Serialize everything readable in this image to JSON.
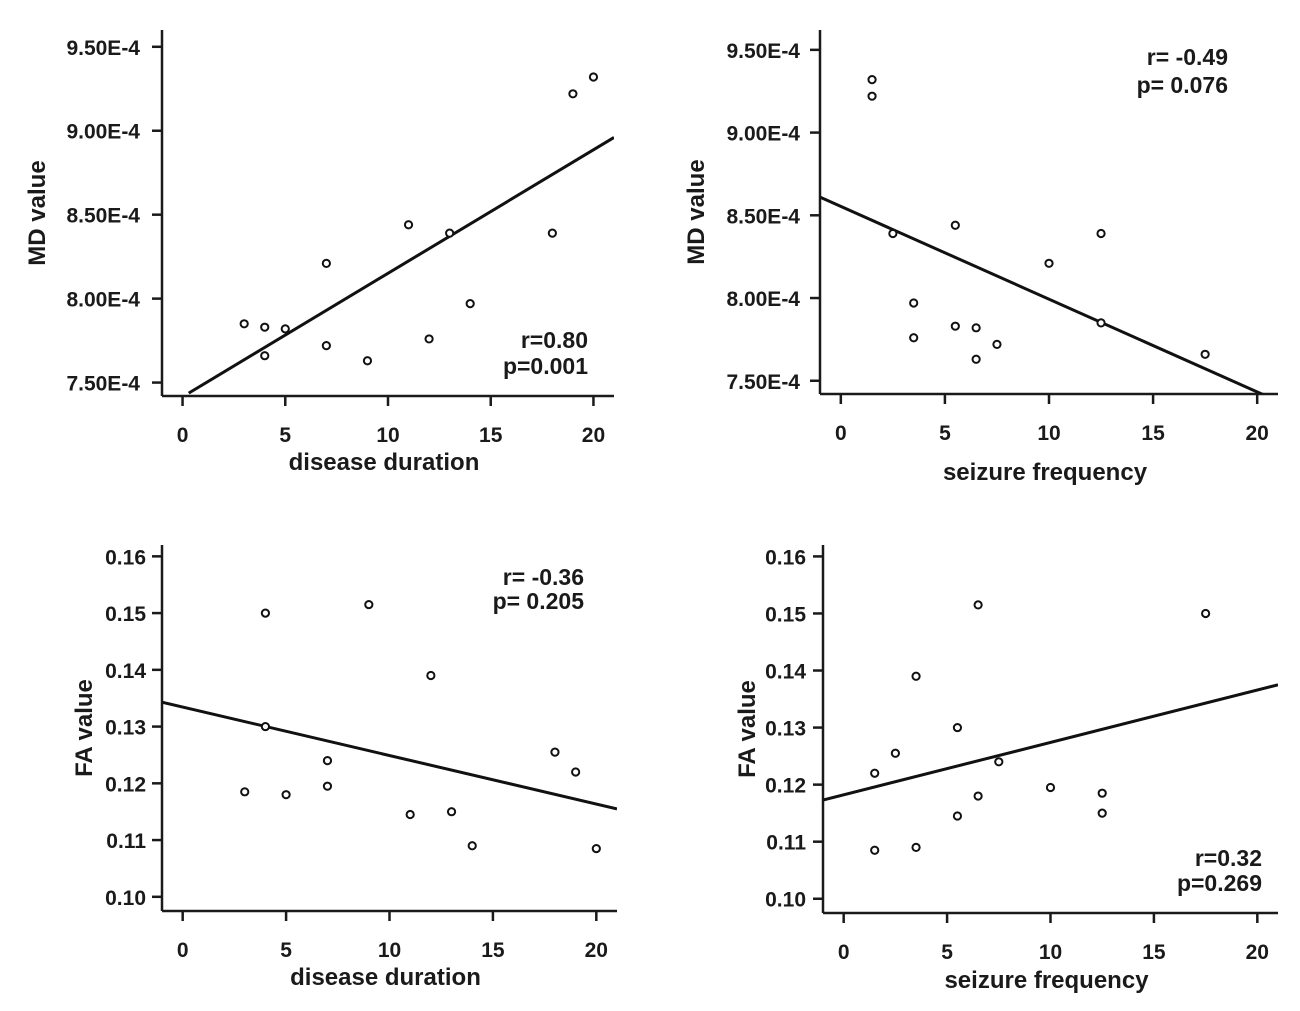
{
  "chart_data": [
    {
      "type": "scatter",
      "xlabel": "disease duration",
      "ylabel": "MD value",
      "xlim": [
        -1,
        21
      ],
      "ylim": [
        0.000742,
        0.00096
      ],
      "xticks": [
        0,
        5,
        10,
        15,
        20
      ],
      "xtick_labels": [
        "0",
        "5",
        "10",
        "15",
        "20"
      ],
      "yticks": [
        0.00075,
        0.0008,
        0.00085,
        0.0009,
        0.00095
      ],
      "ytick_labels": [
        "7.50E-4",
        "8.00E-4",
        "8.50E-4",
        "9.00E-4",
        "9.50E-4"
      ],
      "stats": [
        "r=0.80",
        "p=0.001"
      ],
      "stats_placement": "bottom-right",
      "points": [
        {
          "x": 3,
          "y": 0.000785
        },
        {
          "x": 4,
          "y": 0.000783
        },
        {
          "x": 4,
          "y": 0.000766
        },
        {
          "x": 5,
          "y": 0.000782
        },
        {
          "x": 7,
          "y": 0.000821
        },
        {
          "x": 7,
          "y": 0.000772
        },
        {
          "x": 9,
          "y": 0.000763
        },
        {
          "x": 11,
          "y": 0.000844
        },
        {
          "x": 12,
          "y": 0.000776
        },
        {
          "x": 13,
          "y": 0.000839
        },
        {
          "x": 14,
          "y": 0.000797
        },
        {
          "x": 18,
          "y": 0.000839
        },
        {
          "x": 19,
          "y": 0.000922
        },
        {
          "x": 20,
          "y": 0.000932
        }
      ],
      "fit_line": {
        "x": [
          0.3,
          21
        ],
        "y": [
          0.0007437,
          0.000896
        ]
      }
    },
    {
      "type": "scatter",
      "xlabel": "seizure frequency",
      "ylabel": "MD value",
      "xlim": [
        -1,
        21
      ],
      "ylim": [
        0.000742,
        0.000962
      ],
      "xticks": [
        0,
        5,
        10,
        15,
        20
      ],
      "xtick_labels": [
        "0",
        "5",
        "10",
        "15",
        "20"
      ],
      "yticks": [
        0.00075,
        0.0008,
        0.00085,
        0.0009,
        0.00095
      ],
      "ytick_labels": [
        "7.50E-4",
        "8.00E-4",
        "8.50E-4",
        "9.00E-4",
        "9.50E-4"
      ],
      "stats": [
        "r= -0.49",
        "p= 0.076"
      ],
      "stats_placement": "top-right",
      "points": [
        {
          "x": 1.5,
          "y": 0.000932
        },
        {
          "x": 1.5,
          "y": 0.000922
        },
        {
          "x": 2.5,
          "y": 0.000839
        },
        {
          "x": 3.5,
          "y": 0.000797
        },
        {
          "x": 3.5,
          "y": 0.000776
        },
        {
          "x": 5.5,
          "y": 0.000844
        },
        {
          "x": 5.5,
          "y": 0.000783
        },
        {
          "x": 6.5,
          "y": 0.000782
        },
        {
          "x": 6.5,
          "y": 0.000763
        },
        {
          "x": 7.5,
          "y": 0.000772
        },
        {
          "x": 10,
          "y": 0.000821
        },
        {
          "x": 12.5,
          "y": 0.000839
        },
        {
          "x": 12.5,
          "y": 0.000785
        },
        {
          "x": 17.5,
          "y": 0.000766
        }
      ],
      "fit_line": {
        "x": [
          -1,
          20.4
        ],
        "y": [
          0.000861,
          0.000741
        ]
      }
    },
    {
      "type": "scatter",
      "xlabel": "disease duration",
      "ylabel": "FA value",
      "xlim": [
        -1,
        21
      ],
      "ylim": [
        0.0975,
        0.162
      ],
      "xticks": [
        0,
        5,
        10,
        15,
        20
      ],
      "xtick_labels": [
        "0",
        "5",
        "10",
        "15",
        "20"
      ],
      "yticks": [
        0.1,
        0.11,
        0.12,
        0.13,
        0.14,
        0.15,
        0.16
      ],
      "ytick_labels": [
        "0.10",
        "0.11",
        "0.12",
        "0.13",
        "0.14",
        "0.15",
        "0.16"
      ],
      "stats": [
        "r= -0.36",
        "p= 0.205"
      ],
      "stats_placement": "top-right",
      "points": [
        {
          "x": 3,
          "y": 0.1185
        },
        {
          "x": 4,
          "y": 0.15
        },
        {
          "x": 4,
          "y": 0.13
        },
        {
          "x": 5,
          "y": 0.118
        },
        {
          "x": 7,
          "y": 0.124
        },
        {
          "x": 7,
          "y": 0.1195
        },
        {
          "x": 9,
          "y": 0.1515
        },
        {
          "x": 11,
          "y": 0.1145
        },
        {
          "x": 12,
          "y": 0.139
        },
        {
          "x": 13,
          "y": 0.115
        },
        {
          "x": 14,
          "y": 0.109
        },
        {
          "x": 18,
          "y": 0.1255
        },
        {
          "x": 19,
          "y": 0.122
        },
        {
          "x": 20,
          "y": 0.1085
        }
      ],
      "fit_line": {
        "x": [
          -1,
          21
        ],
        "y": [
          0.1343,
          0.1155
        ]
      }
    },
    {
      "type": "scatter",
      "xlabel": "seizure frequency",
      "ylabel": "FA value",
      "xlim": [
        -1,
        21
      ],
      "ylim": [
        0.0975,
        0.162
      ],
      "xticks": [
        0,
        5,
        10,
        15,
        20
      ],
      "xtick_labels": [
        "0",
        "5",
        "10",
        "15",
        "20"
      ],
      "yticks": [
        0.1,
        0.11,
        0.12,
        0.13,
        0.14,
        0.15,
        0.16
      ],
      "ytick_labels": [
        "0.10",
        "0.11",
        "0.12",
        "0.13",
        "0.14",
        "0.15",
        "0.16"
      ],
      "stats": [
        "r=0.32",
        "p=0.269"
      ],
      "stats_placement": "bottom-right",
      "points": [
        {
          "x": 1.5,
          "y": 0.122
        },
        {
          "x": 1.5,
          "y": 0.1085
        },
        {
          "x": 2.5,
          "y": 0.1255
        },
        {
          "x": 3.5,
          "y": 0.139
        },
        {
          "x": 3.5,
          "y": 0.109
        },
        {
          "x": 5.5,
          "y": 0.13
        },
        {
          "x": 5.5,
          "y": 0.1145
        },
        {
          "x": 6.5,
          "y": 0.1515
        },
        {
          "x": 6.5,
          "y": 0.118
        },
        {
          "x": 7.5,
          "y": 0.124
        },
        {
          "x": 10,
          "y": 0.1195
        },
        {
          "x": 12.5,
          "y": 0.1185
        },
        {
          "x": 12.5,
          "y": 0.115
        },
        {
          "x": 17.5,
          "y": 0.15
        }
      ],
      "fit_line": {
        "x": [
          -1,
          21
        ],
        "y": [
          0.1173,
          0.1375
        ]
      }
    }
  ]
}
